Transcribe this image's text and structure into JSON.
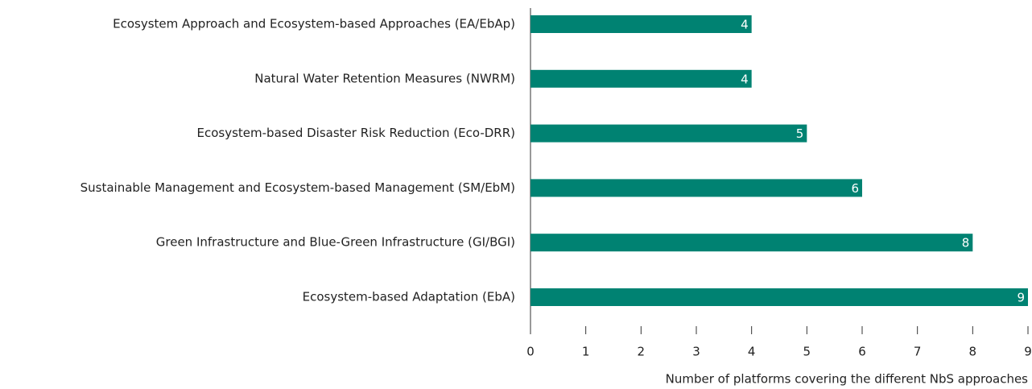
{
  "chart_data": {
    "type": "barh",
    "categories": [
      "Ecosystem Approach and Ecosystem-based Approaches (EA/EbAp)",
      "Natural Water Retention Measures (NWRM)",
      "Ecosystem-based Disaster Risk Reduction (Eco-DRR)",
      "Sustainable Management and Ecosystem-based Management (SM/EbM)",
      "Green Infrastructure and Blue-Green Infrastructure (GI/BGI)",
      "Ecosystem-based Adaptation (EbA)"
    ],
    "values": [
      4,
      4,
      5,
      6,
      8,
      9
    ],
    "color": "#008272",
    "x_label": "Number of platforms covering the different NbS approaches",
    "xlim": [
      0,
      9
    ],
    "xticks": [
      0,
      1,
      2,
      3,
      4,
      5,
      6,
      7,
      8,
      9
    ]
  }
}
